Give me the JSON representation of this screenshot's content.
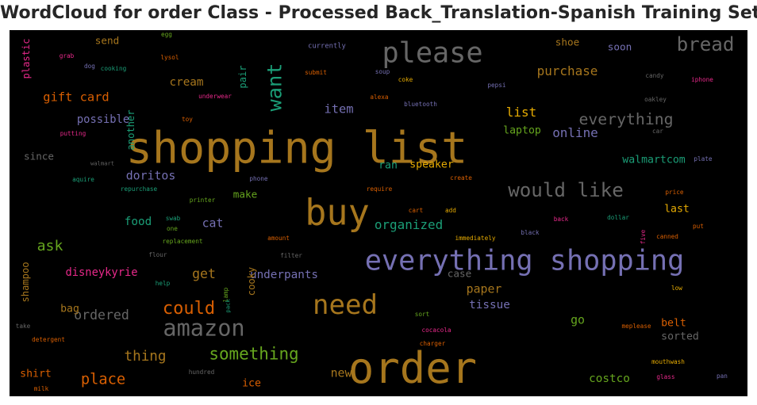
{
  "title": "WordCloud for order Class - Processed Back_Translation-Spanish Training Set",
  "chart_data": {
    "type": "wordcloud",
    "title": "WordCloud for order Class - Processed Back_Translation-Spanish Training Set",
    "palette": "Dark2",
    "background": "#000000",
    "words": [
      {
        "text": "shopping list",
        "weight": 100,
        "color": "#a6761d"
      },
      {
        "text": "order",
        "weight": 98,
        "color": "#a6761d"
      },
      {
        "text": "buy",
        "weight": 82,
        "color": "#a6761d"
      },
      {
        "text": "everything shopping",
        "weight": 64,
        "color": "#7570b3"
      },
      {
        "text": "please",
        "weight": 64,
        "color": "#666666"
      },
      {
        "text": "need",
        "weight": 62,
        "color": "#a6761d"
      },
      {
        "text": "amazon",
        "weight": 52,
        "color": "#666666"
      },
      {
        "text": "want",
        "weight": 46,
        "color": "#1b9e77"
      },
      {
        "text": "would like",
        "weight": 44,
        "color": "#666666"
      },
      {
        "text": "bread",
        "weight": 44,
        "color": "#666666"
      },
      {
        "text": "could",
        "weight": 40,
        "color": "#d95f02"
      },
      {
        "text": "something",
        "weight": 38,
        "color": "#66a61e"
      },
      {
        "text": "everything",
        "weight": 36,
        "color": "#666666"
      },
      {
        "text": "place",
        "weight": 34,
        "color": "#d95f02"
      },
      {
        "text": "ask",
        "weight": 33,
        "color": "#66a61e"
      },
      {
        "text": "thing",
        "weight": 32,
        "color": "#a6761d"
      },
      {
        "text": "ordered",
        "weight": 30,
        "color": "#666666"
      },
      {
        "text": "get",
        "weight": 30,
        "color": "#a6761d"
      },
      {
        "text": "purchase",
        "weight": 29,
        "color": "#a6761d"
      },
      {
        "text": "list",
        "weight": 29,
        "color": "#e6ab02"
      },
      {
        "text": "online",
        "weight": 29,
        "color": "#7570b3"
      },
      {
        "text": "organized",
        "weight": 29,
        "color": "#1b9e77"
      },
      {
        "text": "gift card",
        "weight": 28,
        "color": "#d95f02"
      },
      {
        "text": "item",
        "weight": 28,
        "color": "#7570b3"
      },
      {
        "text": "doritos",
        "weight": 27,
        "color": "#7570b3"
      },
      {
        "text": "cat",
        "weight": 27,
        "color": "#7570b3"
      },
      {
        "text": "paper",
        "weight": 27,
        "color": "#a6761d"
      },
      {
        "text": "go",
        "weight": 27,
        "color": "#66a61e"
      },
      {
        "text": "new",
        "weight": 27,
        "color": "#a6761d"
      },
      {
        "text": "costco",
        "weight": 26,
        "color": "#66a61e"
      },
      {
        "text": "cream",
        "weight": 26,
        "color": "#a6761d"
      },
      {
        "text": "food",
        "weight": 26,
        "color": "#1b9e77"
      },
      {
        "text": "underpants",
        "weight": 26,
        "color": "#7570b3"
      },
      {
        "text": "tissue",
        "weight": 26,
        "color": "#7570b3"
      },
      {
        "text": "disneykyrie",
        "weight": 25,
        "color": "#e7298a"
      },
      {
        "text": "possible",
        "weight": 25,
        "color": "#7570b3"
      },
      {
        "text": "laptop",
        "weight": 24,
        "color": "#66a61e"
      },
      {
        "text": "ran",
        "weight": 24,
        "color": "#1b9e77"
      },
      {
        "text": "speaker",
        "weight": 24,
        "color": "#e6ab02"
      },
      {
        "text": "walmartcom",
        "weight": 24,
        "color": "#1b9e77"
      },
      {
        "text": "last",
        "weight": 24,
        "color": "#e6ab02"
      },
      {
        "text": "belt",
        "weight": 24,
        "color": "#d95f02"
      },
      {
        "text": "sorted",
        "weight": 24,
        "color": "#666666"
      },
      {
        "text": "shirt",
        "weight": 24,
        "color": "#d95f02"
      },
      {
        "text": "ice",
        "weight": 24,
        "color": "#d95f02"
      },
      {
        "text": "bag",
        "weight": 24,
        "color": "#a6761d"
      },
      {
        "text": "case",
        "weight": 23,
        "color": "#666666"
      },
      {
        "text": "make",
        "weight": 23,
        "color": "#66a61e"
      },
      {
        "text": "since",
        "weight": 23,
        "color": "#666666"
      },
      {
        "text": "send",
        "weight": 23,
        "color": "#a6761d"
      },
      {
        "text": "shoe",
        "weight": 23,
        "color": "#a6761d"
      },
      {
        "text": "soon",
        "weight": 23,
        "color": "#7570b3"
      },
      {
        "text": "another",
        "weight": 22,
        "color": "#1b9e77"
      },
      {
        "text": "pair",
        "weight": 22,
        "color": "#1b9e77"
      },
      {
        "text": "shampoo",
        "weight": 22,
        "color": "#a6761d"
      },
      {
        "text": "cooky",
        "weight": 22,
        "color": "#a6761d"
      },
      {
        "text": "plastic",
        "weight": 22,
        "color": "#e7298a"
      },
      {
        "text": "currently",
        "weight": 16,
        "color": "#7570b3"
      },
      {
        "text": "egg",
        "weight": 14,
        "color": "#66a61e"
      },
      {
        "text": "grab",
        "weight": 14,
        "color": "#e7298a"
      },
      {
        "text": "dog",
        "weight": 14,
        "color": "#7570b3"
      },
      {
        "text": "lysol",
        "weight": 14,
        "color": "#d95f02"
      },
      {
        "text": "cooking",
        "weight": 14,
        "color": "#1b9e77"
      },
      {
        "text": "submit",
        "weight": 14,
        "color": "#d95f02"
      },
      {
        "text": "soup",
        "weight": 14,
        "color": "#7570b3"
      },
      {
        "text": "coke",
        "weight": 14,
        "color": "#e6ab02"
      },
      {
        "text": "pepsi",
        "weight": 14,
        "color": "#7570b3"
      },
      {
        "text": "candy",
        "weight": 14,
        "color": "#666666"
      },
      {
        "text": "iphone",
        "weight": 14,
        "color": "#e7298a"
      },
      {
        "text": "underwear",
        "weight": 14,
        "color": "#e7298a"
      },
      {
        "text": "alexa",
        "weight": 14,
        "color": "#d95f02"
      },
      {
        "text": "bluetooth",
        "weight": 14,
        "color": "#7570b3"
      },
      {
        "text": "oakley",
        "weight": 14,
        "color": "#666666"
      },
      {
        "text": "toy",
        "weight": 14,
        "color": "#d95f02"
      },
      {
        "text": "putting",
        "weight": 14,
        "color": "#e7298a"
      },
      {
        "text": "car",
        "weight": 14,
        "color": "#666666"
      },
      {
        "text": "walmart",
        "weight": 13,
        "color": "#666666"
      },
      {
        "text": "plate",
        "weight": 14,
        "color": "#7570b3"
      },
      {
        "text": "create",
        "weight": 14,
        "color": "#d95f02"
      },
      {
        "text": "aquire",
        "weight": 14,
        "color": "#1b9e77"
      },
      {
        "text": "repurchase",
        "weight": 14,
        "color": "#1b9e77"
      },
      {
        "text": "phone",
        "weight": 14,
        "color": "#7570b3"
      },
      {
        "text": "require",
        "weight": 14,
        "color": "#d95f02"
      },
      {
        "text": "price",
        "weight": 14,
        "color": "#d95f02"
      },
      {
        "text": "printer",
        "weight": 14,
        "color": "#66a61e"
      },
      {
        "text": "cart",
        "weight": 14,
        "color": "#d95f02"
      },
      {
        "text": "add",
        "weight": 14,
        "color": "#e6ab02"
      },
      {
        "text": "back",
        "weight": 14,
        "color": "#e7298a"
      },
      {
        "text": "dollar",
        "weight": 14,
        "color": "#1b9e77"
      },
      {
        "text": "swab",
        "weight": 14,
        "color": "#1b9e77"
      },
      {
        "text": "one",
        "weight": 14,
        "color": "#66a61e"
      },
      {
        "text": "put",
        "weight": 14,
        "color": "#d95f02"
      },
      {
        "text": "replacement",
        "weight": 14,
        "color": "#66a61e"
      },
      {
        "text": "amount",
        "weight": 14,
        "color": "#d95f02"
      },
      {
        "text": "immediately",
        "weight": 14,
        "color": "#e6ab02"
      },
      {
        "text": "black",
        "weight": 14,
        "color": "#7570b3"
      },
      {
        "text": "canned",
        "weight": 14,
        "color": "#d95f02"
      },
      {
        "text": "flour",
        "weight": 14,
        "color": "#666666"
      },
      {
        "text": "filter",
        "weight": 14,
        "color": "#666666"
      },
      {
        "text": "five",
        "weight": 14,
        "color": "#e7298a"
      },
      {
        "text": "help",
        "weight": 14,
        "color": "#1b9e77"
      },
      {
        "text": "lamp",
        "weight": 14,
        "color": "#66a61e"
      },
      {
        "text": "pack",
        "weight": 13,
        "color": "#1b9e77"
      },
      {
        "text": "low",
        "weight": 14,
        "color": "#e6ab02"
      },
      {
        "text": "take",
        "weight": 14,
        "color": "#666666"
      },
      {
        "text": "sort",
        "weight": 14,
        "color": "#66a61e"
      },
      {
        "text": "meplease",
        "weight": 14,
        "color": "#d95f02"
      },
      {
        "text": "cocacola",
        "weight": 14,
        "color": "#e7298a"
      },
      {
        "text": "detergent",
        "weight": 14,
        "color": "#d95f02"
      },
      {
        "text": "charger",
        "weight": 14,
        "color": "#d95f02"
      },
      {
        "text": "mouthwash",
        "weight": 14,
        "color": "#e6ab02"
      },
      {
        "text": "hundred",
        "weight": 14,
        "color": "#666666"
      },
      {
        "text": "glass",
        "weight": 14,
        "color": "#e7298a"
      },
      {
        "text": "pan",
        "weight": 14,
        "color": "#7570b3"
      },
      {
        "text": "milk",
        "weight": 14,
        "color": "#d95f02"
      }
    ]
  }
}
